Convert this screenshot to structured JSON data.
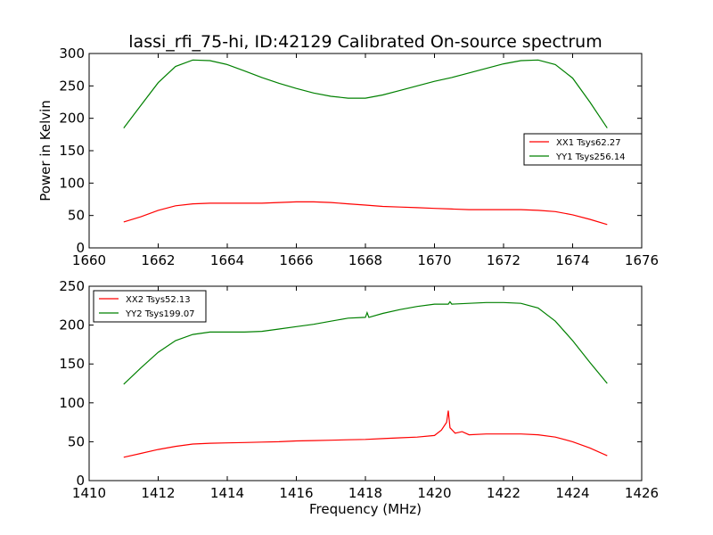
{
  "figure": {
    "title": "lassi_rfi_75-hi, ID:42129 Calibrated On-source spectrum"
  },
  "chart_data": [
    {
      "type": "line",
      "xlabel": "",
      "ylabel": "Power in Kelvin",
      "xlim": [
        1660,
        1676
      ],
      "ylim": [
        0,
        300
      ],
      "xticks": [
        "1660",
        "1662",
        "1664",
        "1666",
        "1668",
        "1670",
        "1672",
        "1674",
        "1676"
      ],
      "yticks": [
        "0",
        "50",
        "100",
        "150",
        "200",
        "250",
        "300"
      ],
      "legend_position": "right",
      "grid": false,
      "series": [
        {
          "name": "XX1 Tsys62.27",
          "color": "#ff0000",
          "x": [
            1661.0,
            1661.5,
            1662.0,
            1662.5,
            1663.0,
            1663.5,
            1664.0,
            1664.5,
            1665.0,
            1665.5,
            1666.0,
            1666.5,
            1667.0,
            1667.5,
            1668.0,
            1668.5,
            1669.0,
            1669.5,
            1670.0,
            1670.5,
            1671.0,
            1671.5,
            1672.0,
            1672.5,
            1673.0,
            1673.5,
            1674.0,
            1674.5,
            1675.0
          ],
          "values": [
            40,
            48,
            58,
            65,
            68,
            69,
            69,
            69,
            69,
            70,
            71,
            71,
            70,
            68,
            66,
            64,
            63,
            62,
            61,
            60,
            59,
            59,
            59,
            59,
            58,
            56,
            51,
            44,
            36
          ]
        },
        {
          "name": "YY1 Tsys256.14",
          "color": "#008000",
          "x": [
            1661.0,
            1661.5,
            1662.0,
            1662.5,
            1663.0,
            1663.5,
            1664.0,
            1664.5,
            1665.0,
            1665.5,
            1666.0,
            1666.5,
            1667.0,
            1667.5,
            1668.0,
            1668.5,
            1669.0,
            1669.5,
            1670.0,
            1670.5,
            1671.0,
            1671.5,
            1672.0,
            1672.5,
            1673.0,
            1673.5,
            1674.0,
            1674.5,
            1675.0
          ],
          "values": [
            185,
            220,
            255,
            280,
            290,
            289,
            283,
            273,
            263,
            254,
            246,
            239,
            234,
            231,
            231,
            236,
            243,
            250,
            257,
            263,
            270,
            277,
            284,
            289,
            290,
            283,
            262,
            225,
            185
          ]
        }
      ]
    },
    {
      "type": "line",
      "xlabel": "Frequency (MHz)",
      "ylabel": "",
      "xlim": [
        1410,
        1426
      ],
      "ylim": [
        0,
        250
      ],
      "xticks": [
        "1410",
        "1412",
        "1414",
        "1416",
        "1418",
        "1420",
        "1422",
        "1424",
        "1426"
      ],
      "yticks": [
        "0",
        "50",
        "100",
        "150",
        "200",
        "250"
      ],
      "legend_position": "upper left",
      "grid": false,
      "series": [
        {
          "name": "XX2 Tsys52.13",
          "color": "#ff0000",
          "x": [
            1411.0,
            1411.5,
            1412.0,
            1412.5,
            1413.0,
            1413.5,
            1414.0,
            1414.5,
            1415.0,
            1415.5,
            1416.0,
            1416.5,
            1417.0,
            1417.5,
            1418.0,
            1418.5,
            1419.0,
            1419.5,
            1420.0,
            1420.2,
            1420.35,
            1420.4,
            1420.45,
            1420.6,
            1420.8,
            1421.0,
            1421.5,
            1422.0,
            1422.5,
            1423.0,
            1423.5,
            1424.0,
            1424.5,
            1425.0
          ],
          "values": [
            30,
            35,
            40,
            44,
            47,
            48,
            48.5,
            49,
            49.5,
            50,
            51,
            51.5,
            52,
            52.5,
            53,
            54,
            55,
            56,
            58,
            65,
            75,
            90,
            68,
            61,
            63,
            59,
            60,
            60,
            60,
            59,
            56,
            50,
            42,
            32
          ]
        },
        {
          "name": "YY2 Tsys199.07",
          "color": "#008000",
          "x": [
            1411.0,
            1411.5,
            1412.0,
            1412.5,
            1413.0,
            1413.5,
            1414.0,
            1414.5,
            1415.0,
            1415.5,
            1416.0,
            1416.5,
            1417.0,
            1417.5,
            1418.0,
            1418.05,
            1418.1,
            1418.5,
            1419.0,
            1419.5,
            1420.0,
            1420.4,
            1420.45,
            1420.5,
            1421.0,
            1421.5,
            1422.0,
            1422.5,
            1423.0,
            1423.5,
            1424.0,
            1424.5,
            1425.0
          ],
          "values": [
            124,
            145,
            165,
            180,
            188,
            191,
            191,
            191,
            192,
            195,
            198,
            201,
            205,
            209,
            210,
            216,
            210,
            215,
            220,
            224,
            227,
            227,
            230,
            227,
            228,
            229,
            229,
            228,
            222,
            205,
            180,
            152,
            125
          ]
        }
      ]
    }
  ]
}
